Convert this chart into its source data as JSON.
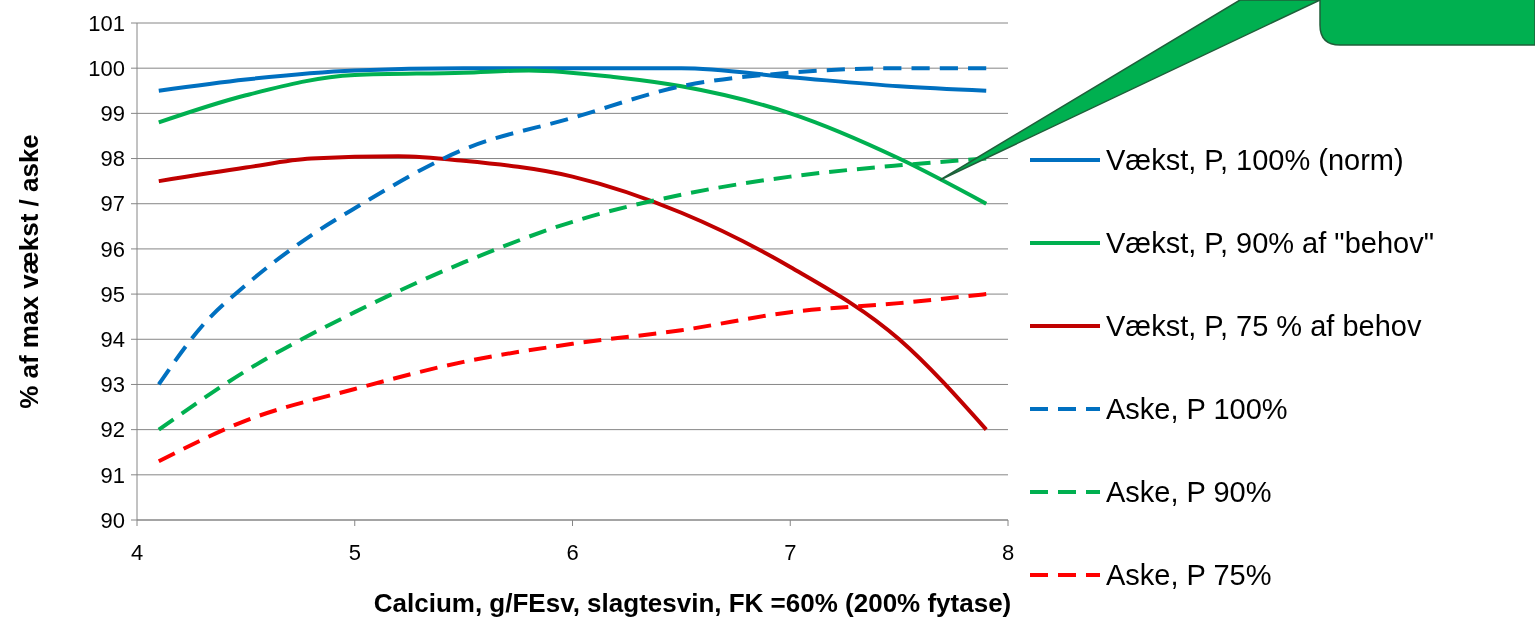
{
  "chart_data": {
    "type": "line",
    "xlabel": "Calcium, g/FEsv, slagtesvin, FK =60% (200% fytase)",
    "ylabel": "% af max vækst / aske",
    "xlim": [
      4,
      8
    ],
    "xticks": [
      4,
      5,
      6,
      7,
      8
    ],
    "ylim": [
      90,
      101
    ],
    "yticks": [
      90,
      91,
      92,
      93,
      94,
      95,
      96,
      97,
      98,
      99,
      100,
      101
    ],
    "grid": "y",
    "legend": "right",
    "series": [
      {
        "name": "Vækst, P, 100% (norm)",
        "color": "#0070c0",
        "line_style": "solid",
        "x": [
          4.1,
          4.5,
          5,
          5.5,
          6,
          6.5,
          7,
          7.5,
          7.9
        ],
        "values": [
          99.5,
          99.75,
          99.95,
          100,
          100,
          100,
          99.8,
          99.6,
          99.5
        ]
      },
      {
        "name": "Vækst, P, 90% af \"behov\"",
        "color": "#00b050",
        "line_style": "solid",
        "x": [
          4.1,
          4.5,
          5,
          5.5,
          5.8,
          6.2,
          6.5,
          7,
          7.5,
          7.9
        ],
        "values": [
          98.8,
          99.4,
          99.85,
          99.9,
          99.95,
          99.8,
          99.6,
          99,
          98,
          97
        ]
      },
      {
        "name": "Vækst, P, 75 % af behov",
        "color": "#c00000",
        "line_style": "solid",
        "x": [
          4.1,
          4.5,
          4.8,
          5.2,
          5.5,
          6,
          6.5,
          7,
          7.5,
          7.9
        ],
        "values": [
          97.5,
          97.8,
          98,
          98.05,
          97.95,
          97.6,
          96.8,
          95.6,
          94,
          92
        ]
      },
      {
        "name": "Aske, P 100%",
        "color": "#0070c0",
        "line_style": "dashed",
        "x": [
          4.1,
          4.3,
          4.5,
          4.8,
          5,
          5.5,
          6,
          6.5,
          7,
          7.5,
          7.9
        ],
        "values": [
          93,
          94.3,
          95.2,
          96.3,
          96.9,
          98.2,
          98.9,
          99.6,
          99.9,
          100,
          100
        ]
      },
      {
        "name": "Aske, P 90%",
        "color": "#00b050",
        "line_style": "dashed",
        "x": [
          4.1,
          4.5,
          5,
          5.5,
          6,
          6.5,
          7,
          7.5,
          7.9
        ],
        "values": [
          92,
          93.3,
          94.6,
          95.7,
          96.6,
          97.2,
          97.6,
          97.85,
          98
        ]
      },
      {
        "name": "Aske, P 75%",
        "color": "#ff0000",
        "line_style": "dashed",
        "x": [
          4.1,
          4.5,
          5,
          5.5,
          6,
          6.5,
          7,
          7.5,
          7.9
        ],
        "values": [
          91.3,
          92.2,
          92.9,
          93.5,
          93.9,
          94.2,
          94.6,
          94.8,
          95
        ]
      }
    ]
  }
}
